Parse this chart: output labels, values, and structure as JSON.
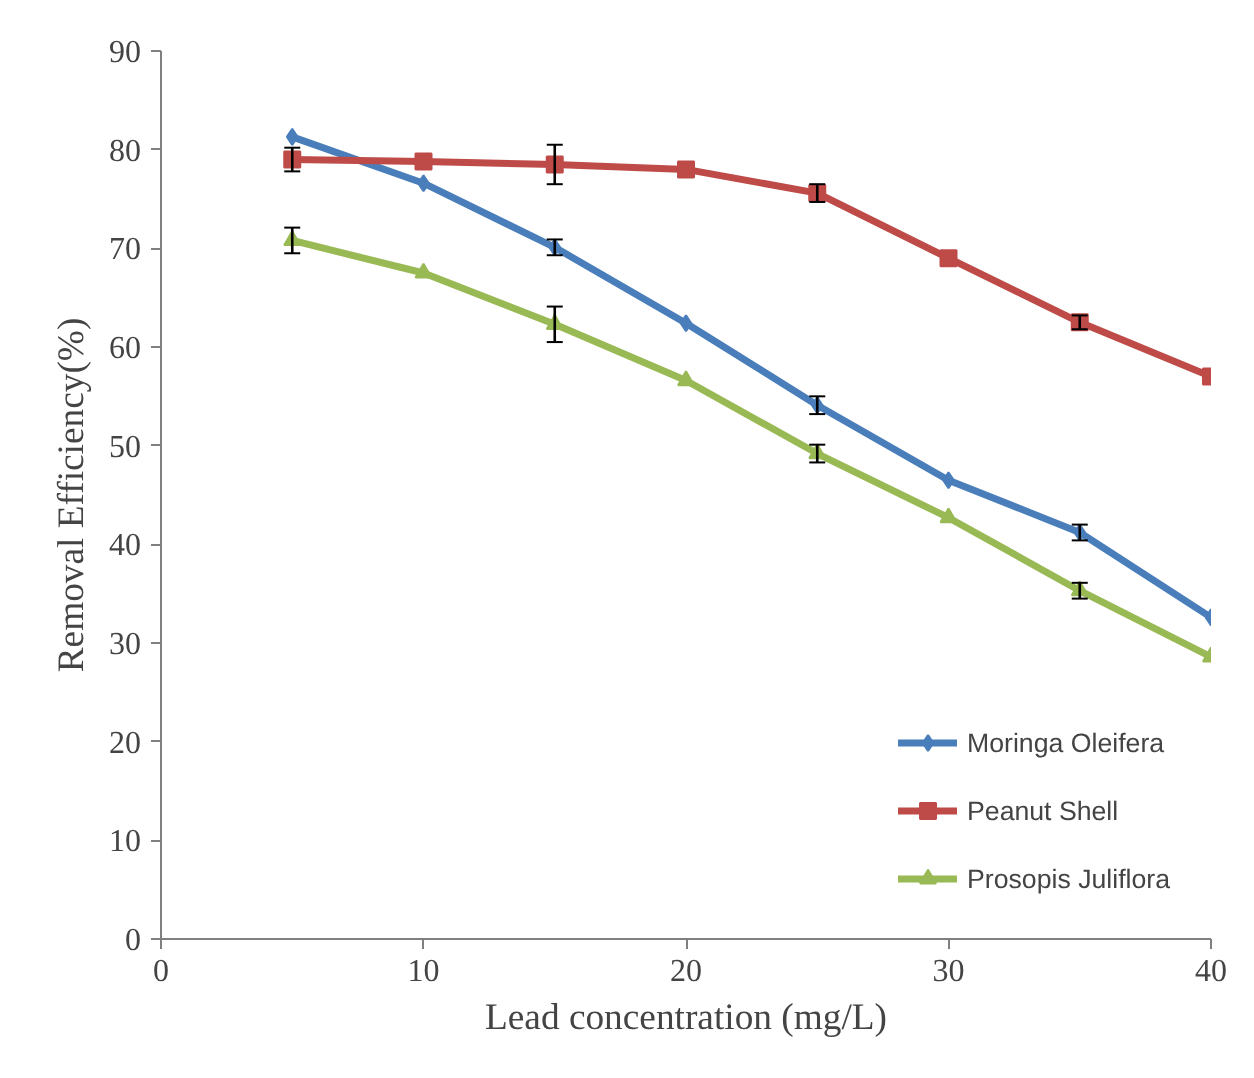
{
  "chart_data": {
    "type": "line",
    "xlabel": "Lead concentration (mg/L)",
    "ylabel": "Removal Efficiency(%)",
    "x": [
      5,
      10,
      15,
      20,
      25,
      30,
      35,
      40
    ],
    "xlim": [
      0,
      40
    ],
    "xticks": [
      0,
      10,
      20,
      30,
      40
    ],
    "ylim": [
      0,
      90
    ],
    "yticks": [
      0,
      10,
      20,
      30,
      40,
      50,
      60,
      70,
      80,
      90
    ],
    "grid": false,
    "legend": "bottom right",
    "line_style": "solid",
    "series": [
      {
        "name": "Moringa Oleifera",
        "color": "#4a7ebb",
        "marker": "diamond",
        "values": [
          81.3,
          76.6,
          70.1,
          62.4,
          54.1,
          46.5,
          41.2,
          32.6
        ],
        "errors": [
          null,
          null,
          0.8,
          null,
          0.9,
          null,
          0.8,
          null
        ]
      },
      {
        "name": "Peanut Shell",
        "color": "#be4b48",
        "marker": "square",
        "values": [
          79.0,
          78.8,
          78.5,
          78.0,
          75.6,
          69.0,
          62.5,
          57.0
        ],
        "errors": [
          1.2,
          null,
          2.0,
          null,
          0.9,
          null,
          0.7,
          null
        ]
      },
      {
        "name": "Prosopis Juliflora",
        "color": "#98b954",
        "marker": "triangle",
        "values": [
          70.8,
          67.5,
          62.3,
          56.6,
          49.2,
          42.7,
          35.3,
          28.6
        ],
        "errors": [
          1.3,
          null,
          1.8,
          null,
          0.9,
          null,
          0.8,
          null
        ]
      }
    ]
  }
}
